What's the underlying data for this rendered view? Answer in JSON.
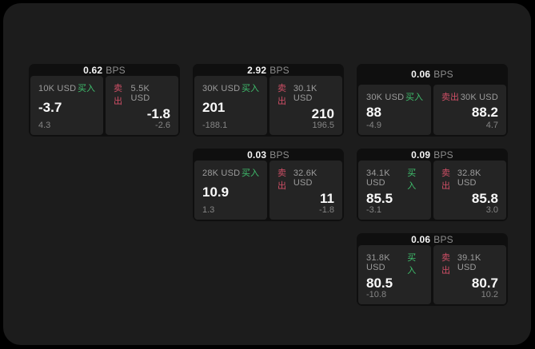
{
  "labels": {
    "bps": "BPS",
    "buy": "买入",
    "sell": "卖出"
  },
  "colors": {
    "background": "#000000",
    "panel": "#1c1c1c",
    "card": "#0f0f0f",
    "tile": "#242424",
    "buy_accent": "#3fbf6d",
    "sell_accent": "#cf4f66"
  },
  "cards": [
    {
      "bps": "0.62",
      "buy": {
        "size": "10K USD",
        "value": "-3.7",
        "change": "4.3"
      },
      "sell": {
        "size": "5.5K USD",
        "value": "-1.8",
        "change": "-2.6"
      }
    },
    {
      "bps": "2.92",
      "buy": {
        "size": "30K USD",
        "value": "201",
        "change": "-188.1"
      },
      "sell": {
        "size": "30.1K USD",
        "value": "210",
        "change": "196.5"
      }
    },
    {
      "bps": "0.06",
      "buy": {
        "size": "30K USD",
        "value": "88",
        "change": "-4.9"
      },
      "sell": {
        "size": "30K USD",
        "value": "88.2",
        "change": "4.7"
      }
    },
    {
      "bps": "0.03",
      "buy": {
        "size": "28K USD",
        "value": "10.9",
        "change": "1.3"
      },
      "sell": {
        "size": "32.6K USD",
        "value": "11",
        "change": "-1.8"
      }
    },
    {
      "bps": "0.09",
      "buy": {
        "size": "34.1K USD",
        "value": "85.5",
        "change": "-3.1"
      },
      "sell": {
        "size": "32.8K USD",
        "value": "85.8",
        "change": "3.0"
      }
    },
    {
      "bps": "0.06",
      "buy": {
        "size": "31.8K USD",
        "value": "80.5",
        "change": "-10.8"
      },
      "sell": {
        "size": "39.1K USD",
        "value": "80.7",
        "change": "10.2"
      }
    }
  ]
}
